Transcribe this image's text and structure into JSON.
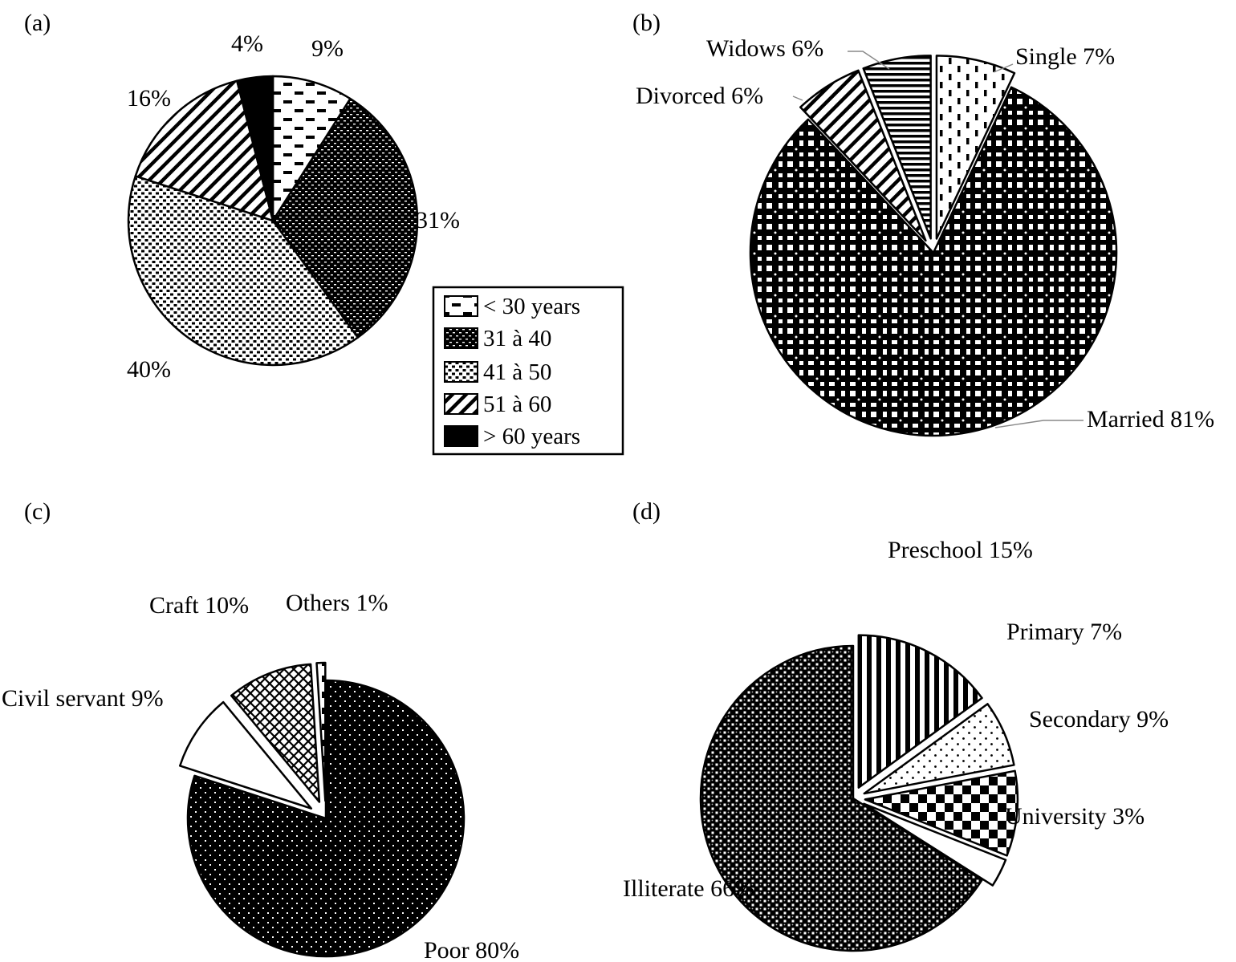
{
  "panels": {
    "a": {
      "tag": "(a)"
    },
    "b": {
      "tag": "(b)"
    },
    "c": {
      "tag": "(c)"
    },
    "d": {
      "tag": "(d)"
    }
  },
  "chart_data": [
    {
      "panel": "(a)",
      "type": "pie",
      "categories": [
        "< 30 years",
        "31 à 40",
        "41 à 50",
        "51 à 60",
        "> 60 years"
      ],
      "values": [
        9,
        31,
        40,
        16,
        4
      ],
      "slice_labels": [
        "9%",
        "31%",
        "40%",
        "16%",
        "4%"
      ],
      "legend": [
        "< 30 years",
        "31 à 40",
        "41 à 50",
        "51 à 60",
        "> 60 years"
      ],
      "legend_placement": "bottom-right",
      "fill_patterns": [
        "dash",
        "dense-dark",
        "light-dots",
        "diagonal",
        "solid"
      ]
    },
    {
      "panel": "(b)",
      "type": "pie",
      "categories": [
        "Single",
        "Married",
        "Divorced",
        "Widows"
      ],
      "values": [
        7,
        81,
        6,
        6
      ],
      "slice_labels": [
        "Single 7%",
        "Married 81%",
        "Divorced 6%",
        "Widows 6%"
      ],
      "exploded": [
        "Single",
        "Divorced",
        "Widows"
      ],
      "fill_patterns": [
        "vdash",
        "grid",
        "diagonal",
        "horizontal"
      ]
    },
    {
      "panel": "(c)",
      "type": "pie",
      "categories": [
        "Poor",
        "Civil servant",
        "Craft",
        "Others"
      ],
      "values": [
        80,
        9,
        10,
        1
      ],
      "slice_labels": [
        "Poor 80%",
        "Civil servant 9%",
        "Craft 10%",
        "Others 1%"
      ],
      "exploded": [
        "Civil servant",
        "Craft",
        "Others"
      ],
      "fill_patterns": [
        "dark-dots",
        "white",
        "crosshatch",
        "vdash"
      ]
    },
    {
      "panel": "(d)",
      "type": "pie",
      "categories": [
        "Preschool",
        "Primary",
        "Secondary",
        "University",
        "Illiterate"
      ],
      "values": [
        15,
        7,
        9,
        3,
        66
      ],
      "slice_labels": [
        "Preschool 15%",
        "Primary 7%",
        "Secondary 9%",
        "University 3%",
        "Illiterate 66%"
      ],
      "exploded": [
        "Preschool",
        "Primary",
        "Secondary",
        "University"
      ],
      "fill_patterns": [
        "vertical",
        "light-dots",
        "checker",
        "white",
        "mesh"
      ]
    }
  ]
}
